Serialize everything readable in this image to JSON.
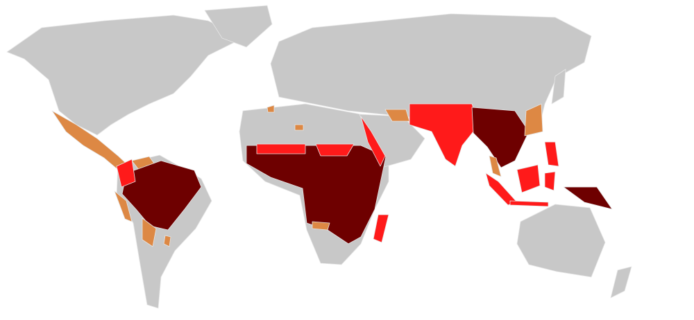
{
  "map": {
    "colors": {
      "background": "#ffffff",
      "land": "#c8c8c8",
      "border": "#e6e6e6",
      "dark_red": "#6e0000",
      "red": "#ff1a1a",
      "orange": "#dd8844"
    }
  }
}
